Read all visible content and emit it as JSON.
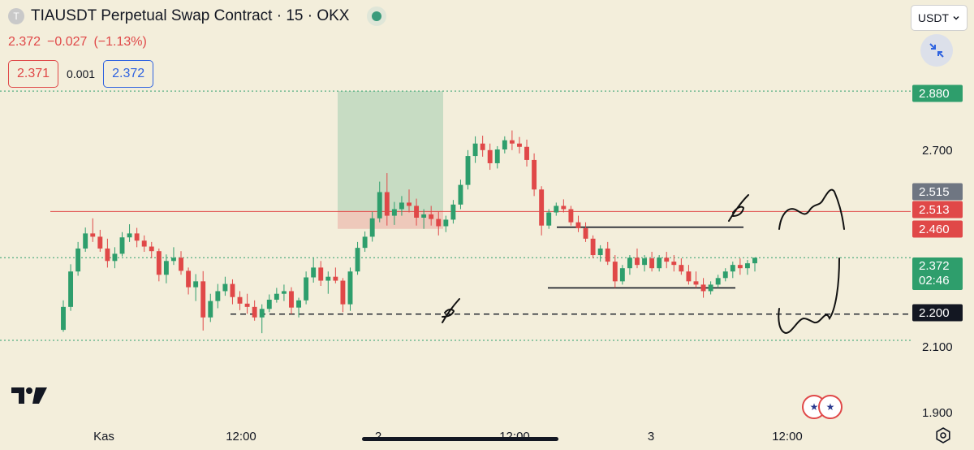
{
  "header": {
    "symbol_icon": "T",
    "title": "TIAUSDT Perpetual Swap Contract · 15 · OKX",
    "last_price": "2.372",
    "change": "−0.027",
    "change_pct": "(−1.13%)",
    "bid": "2.371",
    "spread": "0.001",
    "ask": "2.372",
    "currency": "USDT"
  },
  "icons": {
    "market_status": "market-open-dot-icon",
    "currency_chevron": "chevron-down-icon",
    "collapse": "collapse-arrows-icon",
    "logo": "tradingview-logo-icon",
    "events": "us-flag-icon",
    "settings": "gear-icon"
  },
  "colors": {
    "background": "#f3eedb",
    "up": "#2e9e6c",
    "down": "#e04848",
    "accent_blue": "#2f63e0",
    "gray_label": "#6f7682",
    "text": "#131722"
  },
  "chart_data": {
    "type": "candlestick",
    "title": "TIAUSDT Perpetual Swap Contract · 15 · OKX",
    "x_tick_labels": [
      "Kas",
      "12:00",
      "2",
      "12:00",
      "3",
      "12:00"
    ],
    "y_tick_labels": [
      "2.700",
      "2.100",
      "1.900"
    ],
    "ylim": [
      1.87,
      2.91
    ],
    "grid": false,
    "price_labels": [
      {
        "value": "2.880",
        "color": "#2e9e6c"
      },
      {
        "value": "2.515",
        "color": "#6f7682"
      },
      {
        "value": "2.513",
        "color": "#e04848"
      },
      {
        "value": "2.460",
        "color": "#e04848"
      },
      {
        "value": "2.372",
        "sub": "02:46",
        "color": "#2e9e6c"
      },
      {
        "value": "2.200",
        "color": "#131722"
      }
    ],
    "horizontal_lines": [
      {
        "value": 2.88,
        "style": "dotted",
        "color": "#2e9e6c"
      },
      {
        "value": 2.513,
        "style": "solid",
        "color": "#e04848"
      },
      {
        "value": 2.372,
        "style": "dotted",
        "color": "#2e9e6c"
      },
      {
        "value": 2.12,
        "style": "dotted",
        "color": "#2e9e6c"
      },
      {
        "value": 2.2,
        "style": "dashed",
        "color": "#131722"
      }
    ],
    "position": {
      "entry": 2.515,
      "target": 2.88,
      "stop": 2.46
    },
    "range_box": {
      "top": 2.465,
      "bottom": 2.28
    },
    "candles": [
      [
        2.152,
        2.242,
        2.146,
        2.222
      ],
      [
        2.222,
        2.352,
        2.21,
        2.33
      ],
      [
        2.33,
        2.42,
        2.317,
        2.4
      ],
      [
        2.4,
        2.464,
        2.39,
        2.446
      ],
      [
        2.446,
        2.492,
        2.42,
        2.436
      ],
      [
        2.436,
        2.457,
        2.39,
        2.4
      ],
      [
        2.4,
        2.43,
        2.342,
        2.362
      ],
      [
        2.362,
        2.404,
        2.34,
        2.384
      ],
      [
        2.384,
        2.45,
        2.376,
        2.434
      ],
      [
        2.434,
        2.474,
        2.42,
        2.446
      ],
      [
        2.446,
        2.463,
        2.404,
        2.424
      ],
      [
        2.424,
        2.44,
        2.39,
        2.406
      ],
      [
        2.406,
        2.42,
        2.37,
        2.392
      ],
      [
        2.392,
        2.4,
        2.3,
        2.32
      ],
      [
        2.32,
        2.382,
        2.294,
        2.362
      ],
      [
        2.362,
        2.404,
        2.35,
        2.372
      ],
      [
        2.372,
        2.392,
        2.32,
        2.332
      ],
      [
        2.332,
        2.342,
        2.26,
        2.282
      ],
      [
        2.282,
        2.322,
        2.24,
        2.3
      ],
      [
        2.3,
        2.331,
        2.15,
        2.19
      ],
      [
        2.19,
        2.262,
        2.176,
        2.24
      ],
      [
        2.24,
        2.292,
        2.218,
        2.27
      ],
      [
        2.27,
        2.314,
        2.256,
        2.292
      ],
      [
        2.292,
        2.306,
        2.23,
        2.252
      ],
      [
        2.252,
        2.27,
        2.212,
        2.232
      ],
      [
        2.232,
        2.262,
        2.201,
        2.222
      ],
      [
        2.222,
        2.242,
        2.18,
        2.19
      ],
      [
        2.19,
        2.23,
        2.142,
        2.216
      ],
      [
        2.216,
        2.26,
        2.206,
        2.244
      ],
      [
        2.244,
        2.28,
        2.235,
        2.262
      ],
      [
        2.262,
        2.29,
        2.24,
        2.27
      ],
      [
        2.27,
        2.282,
        2.2,
        2.22
      ],
      [
        2.22,
        2.25,
        2.19,
        2.242
      ],
      [
        2.242,
        2.33,
        2.23,
        2.312
      ],
      [
        2.312,
        2.372,
        2.296,
        2.342
      ],
      [
        2.342,
        2.362,
        2.286,
        2.302
      ],
      [
        2.302,
        2.33,
        2.262,
        2.314
      ],
      [
        2.314,
        2.342,
        2.294,
        2.302
      ],
      [
        2.302,
        2.31,
        2.206,
        2.23
      ],
      [
        2.23,
        2.342,
        2.21,
        2.33
      ],
      [
        2.33,
        2.42,
        2.32,
        2.402
      ],
      [
        2.402,
        2.452,
        2.39,
        2.436
      ],
      [
        2.436,
        2.512,
        2.421,
        2.492
      ],
      [
        2.492,
        2.604,
        2.48,
        2.572
      ],
      [
        2.572,
        2.63,
        2.47,
        2.5
      ],
      [
        2.5,
        2.542,
        2.472,
        2.52
      ],
      [
        2.52,
        2.56,
        2.5,
        2.54
      ],
      [
        2.54,
        2.58,
        2.51,
        2.53
      ],
      [
        2.53,
        2.552,
        2.47,
        2.494
      ],
      [
        2.494,
        2.52,
        2.46,
        2.504
      ],
      [
        2.504,
        2.53,
        2.47,
        2.49
      ],
      [
        2.49,
        2.512,
        2.44,
        2.468
      ],
      [
        2.468,
        2.5,
        2.45,
        2.488
      ],
      [
        2.488,
        2.548,
        2.476,
        2.534
      ],
      [
        2.534,
        2.61,
        2.52,
        2.594
      ],
      [
        2.594,
        2.7,
        2.58,
        2.682
      ],
      [
        2.682,
        2.742,
        2.661,
        2.72
      ],
      [
        2.72,
        2.744,
        2.68,
        2.7
      ],
      [
        2.7,
        2.72,
        2.64,
        2.66
      ],
      [
        2.66,
        2.712,
        2.644,
        2.702
      ],
      [
        2.702,
        2.742,
        2.69,
        2.73
      ],
      [
        2.73,
        2.76,
        2.7,
        2.72
      ],
      [
        2.72,
        2.74,
        2.69,
        2.71
      ],
      [
        2.71,
        2.732,
        2.65,
        2.67
      ],
      [
        2.67,
        2.69,
        2.56,
        2.58
      ],
      [
        2.58,
        2.59,
        2.44,
        2.47
      ],
      [
        2.47,
        2.52,
        2.46,
        2.51
      ],
      [
        2.51,
        2.54,
        2.5,
        2.53
      ],
      [
        2.53,
        2.55,
        2.51,
        2.52
      ],
      [
        2.52,
        2.53,
        2.47,
        2.48
      ],
      [
        2.48,
        2.5,
        2.45,
        2.462
      ],
      [
        2.462,
        2.48,
        2.42,
        2.43
      ],
      [
        2.43,
        2.44,
        2.37,
        2.38
      ],
      [
        2.38,
        2.41,
        2.36,
        2.4
      ],
      [
        2.4,
        2.42,
        2.35,
        2.36
      ],
      [
        2.36,
        2.38,
        2.28,
        2.3
      ],
      [
        2.3,
        2.35,
        2.29,
        2.34
      ],
      [
        2.34,
        2.38,
        2.32,
        2.372
      ],
      [
        2.372,
        2.4,
        2.34,
        2.35
      ],
      [
        2.35,
        2.38,
        2.33,
        2.37
      ],
      [
        2.37,
        2.39,
        2.33,
        2.34
      ],
      [
        2.34,
        2.38,
        2.33,
        2.372
      ],
      [
        2.372,
        2.39,
        2.34,
        2.36
      ],
      [
        2.36,
        2.38,
        2.33,
        2.35
      ],
      [
        2.35,
        2.37,
        2.32,
        2.33
      ],
      [
        2.33,
        2.35,
        2.29,
        2.3
      ],
      [
        2.3,
        2.33,
        2.28,
        2.29
      ],
      [
        2.29,
        2.31,
        2.25,
        2.27
      ],
      [
        2.27,
        2.3,
        2.26,
        2.29
      ],
      [
        2.29,
        2.32,
        2.28,
        2.31
      ],
      [
        2.31,
        2.34,
        2.3,
        2.33
      ],
      [
        2.33,
        2.36,
        2.31,
        2.35
      ],
      [
        2.35,
        2.37,
        2.32,
        2.34
      ],
      [
        2.34,
        2.365,
        2.32,
        2.355
      ],
      [
        2.355,
        2.372,
        2.33,
        2.372
      ]
    ]
  },
  "annotations": {
    "scribble_upper_mark": "✓-like check mark",
    "scribble_lower_mark": "✓-like check mark"
  }
}
